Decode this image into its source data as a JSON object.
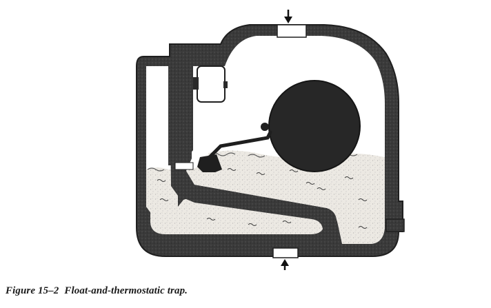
{
  "caption": {
    "number": "Figure 15–2",
    "title": "Float-and-thermostatic trap."
  },
  "colors": {
    "body_fill": "#3a3a3a",
    "water_fill": "#ece9e3",
    "steam_space": "#ffffff",
    "outline": "#1f1f1f",
    "float_fill": "#272727"
  },
  "icons": {
    "inlet": "down-arrow-icon",
    "outlet": "up-arrow-icon"
  }
}
